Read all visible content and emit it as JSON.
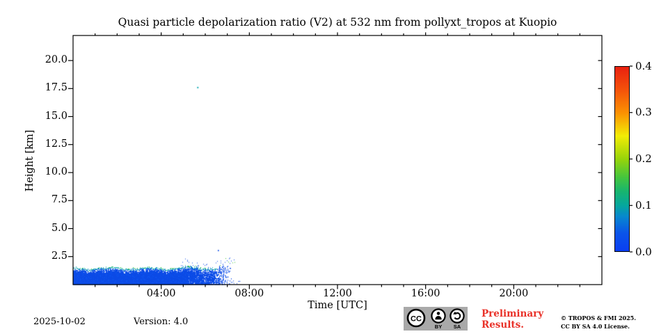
{
  "title": "Quasi particle depolarization ratio (V2) at 532 nm from pollyxt_tropos at Kuopio",
  "axes": {
    "x": {
      "label": "Time [UTC]",
      "range_hours": [
        0,
        24
      ],
      "major_ticks": [
        {
          "hour": 4,
          "label": "04:00"
        },
        {
          "hour": 8,
          "label": "08:00"
        },
        {
          "hour": 12,
          "label": "12:00"
        },
        {
          "hour": 16,
          "label": "16:00"
        },
        {
          "hour": 20,
          "label": "20:00"
        }
      ],
      "minor_tick_every_hours": 1
    },
    "y": {
      "label": "Height [km]",
      "range_km": [
        0,
        22.2
      ],
      "ticks": [
        {
          "km": 2.5,
          "label": "2.5"
        },
        {
          "km": 5.0,
          "label": "5.0"
        },
        {
          "km": 7.5,
          "label": "7.5"
        },
        {
          "km": 10.0,
          "label": "10.0"
        },
        {
          "km": 12.5,
          "label": "12.5"
        },
        {
          "km": 15.0,
          "label": "15.0"
        },
        {
          "km": 17.5,
          "label": "17.5"
        },
        {
          "km": 20.0,
          "label": "20.0"
        }
      ]
    }
  },
  "colorbar": {
    "min": 0.0,
    "max": 0.4,
    "ticks": [
      {
        "value": 0.0,
        "label": "0.0"
      },
      {
        "value": 0.1,
        "label": "0.1"
      },
      {
        "value": 0.2,
        "label": "0.2"
      },
      {
        "value": 0.3,
        "label": "0.3"
      },
      {
        "value": 0.4,
        "label": "0.4"
      }
    ],
    "gradient_stops": [
      {
        "value": 0.0,
        "color": "#0a3ef2"
      },
      {
        "value": 0.04,
        "color": "#0a55e8"
      },
      {
        "value": 0.075,
        "color": "#0787cf"
      },
      {
        "value": 0.1,
        "color": "#05a79c"
      },
      {
        "value": 0.13,
        "color": "#18b56e"
      },
      {
        "value": 0.16,
        "color": "#44c53e"
      },
      {
        "value": 0.2,
        "color": "#97d40a"
      },
      {
        "value": 0.25,
        "color": "#f2ec05"
      },
      {
        "value": 0.3,
        "color": "#fb9102"
      },
      {
        "value": 0.35,
        "color": "#f4520a"
      },
      {
        "value": 0.4,
        "color": "#e92010"
      }
    ]
  },
  "footer": {
    "date": "2025-10-02",
    "version": "Version: 4.0",
    "preliminary": {
      "line1": "Preliminary",
      "line2": "Results."
    },
    "copyright": {
      "line1": "© TROPOS & FMI 2025.",
      "line2": "CC BY SA 4.0 License."
    }
  },
  "badge": {
    "cc": "CC",
    "by": "BY",
    "sa": "SA"
  },
  "colors": {
    "axis": "#000000",
    "band_blue": "#0b4ae6",
    "band_blue_light": "#0d55f0",
    "band_edge_teal": "#10aab4",
    "band_edge_cyan": "#2fbf9f",
    "speck_green": "#3ec431",
    "preliminary_red": "#e93128",
    "badge_gray": "#a9a9a9"
  },
  "chart_data": {
    "type": "heatmap",
    "title": "Quasi particle depolarization ratio (V2) at 532 nm from pollyxt_tropos at Kuopio",
    "xlabel": "Time [UTC]",
    "ylabel": "Height [km]",
    "x_range_hours": [
      0,
      24
    ],
    "x_tick_labels": [
      "04:00",
      "08:00",
      "12:00",
      "16:00",
      "20:00"
    ],
    "y_range_km": [
      0,
      22.2
    ],
    "y_tick_labels_km": [
      2.5,
      5.0,
      7.5,
      10.0,
      12.5,
      15.0,
      17.5,
      20.0
    ],
    "value_range": [
      0.0,
      0.4
    ],
    "grid": false,
    "legend": "colorbar right, 0.0-0.4",
    "layers": [
      {
        "name": "boundary-layer-aerosol-band",
        "time_hours": [
          0.0,
          7.3
        ],
        "solid_until_hour": 6.3,
        "height_km": [
          0.0,
          1.45
        ],
        "depol_value_core": 0.02,
        "depol_value_top_edge": 0.1,
        "depol_value_specks": 0.17,
        "description": "solid low-depol (blue) aerosol band from ground to ~1.45 km lasting 00:00-07:15 UTC; teal top edge with sparse green specks; band becomes speckled and dissolves after ~06:20"
      },
      {
        "name": "isolated-pixel",
        "time_hour": 5.63,
        "height_km": 17.65,
        "value": 0.1
      },
      {
        "name": "isolated-pixel",
        "time_hour": 6.57,
        "height_km": 3.1,
        "value": 0.02
      }
    ]
  }
}
